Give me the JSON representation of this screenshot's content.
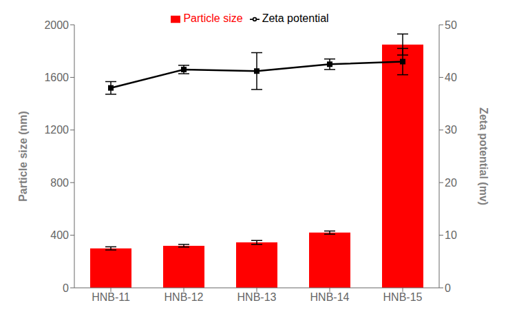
{
  "chart_data": {
    "type": "bar",
    "categories": [
      "HNB-11",
      "HNB-12",
      "HNB-13",
      "HNB-14",
      "HNB-15"
    ],
    "series": [
      {
        "name": "Particle size",
        "type": "bar",
        "color": "#ff0000",
        "values": [
          300,
          320,
          345,
          420,
          1850
        ],
        "errors": [
          12,
          10,
          15,
          12,
          80
        ]
      },
      {
        "name": "Zeta potential",
        "type": "line",
        "color": "#000000",
        "marker": "square",
        "axis": "y2",
        "values": [
          38.0,
          41.5,
          41.2,
          42.5,
          43.0
        ],
        "errors": [
          1.2,
          0.8,
          3.5,
          1.0,
          2.5
        ]
      }
    ],
    "y_label": "Particle size (nm)",
    "y2_label": "Zeta potential (mv)",
    "ylim": [
      0,
      2000
    ],
    "yticks": [
      0,
      400,
      800,
      1200,
      1600,
      2000
    ],
    "y2lim": [
      0,
      50
    ],
    "y2ticks": [
      0,
      10,
      20,
      30,
      40,
      50
    ],
    "legend": "top"
  }
}
